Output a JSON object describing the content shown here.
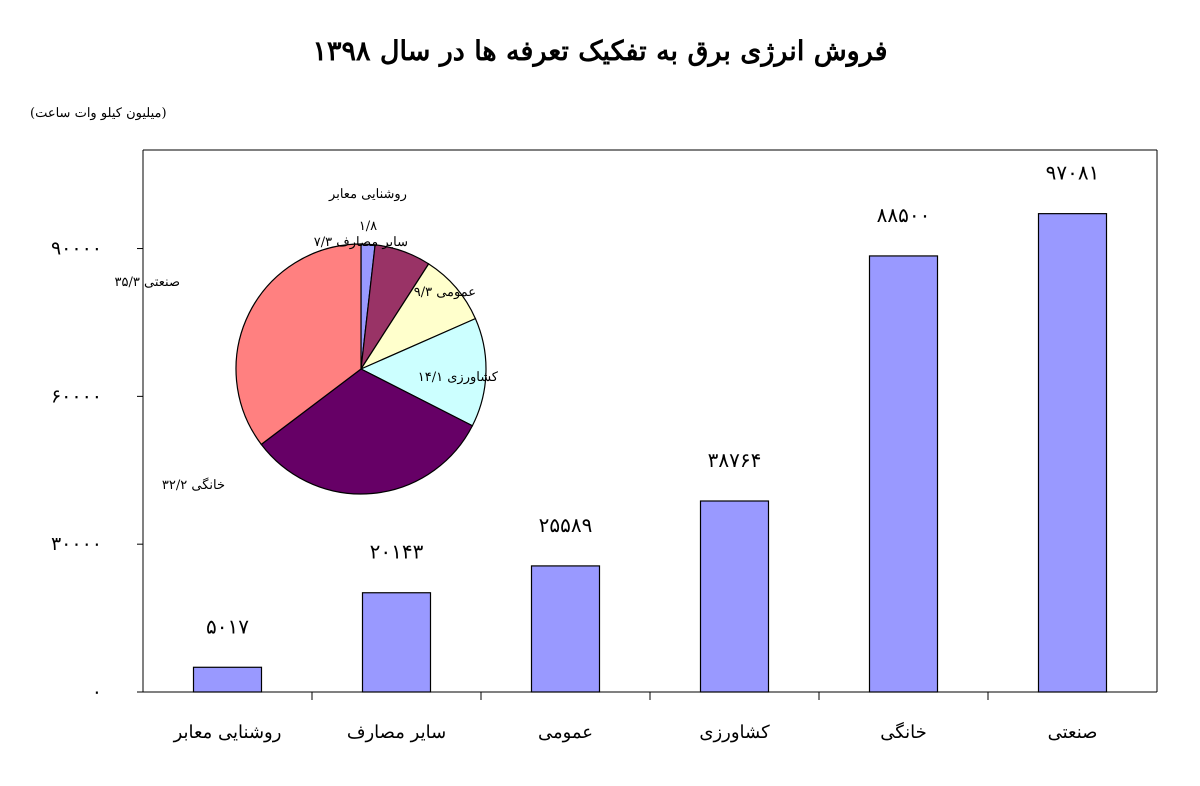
{
  "title": "فروش انرژی برق به تفکیک تعرفه ها در سال ۱۳۹۸",
  "unit_label": "(میلیون کیلو وات ساعت)",
  "colors": {
    "bar_fill": "#9999ff",
    "bar_stroke": "#000000",
    "pie_street_lighting": "#9999ff",
    "pie_other": "#993366",
    "pie_public": "#ffffcc",
    "pie_agriculture": "#ccffff",
    "pie_residential": "#660066",
    "pie_industrial": "#ff8080"
  },
  "chart_data": [
    {
      "type": "bar",
      "categories": [
        "روشنایی معابر",
        "سایر مصارف",
        "عمومی",
        "کشاورزی",
        "خانگی",
        "صنعتی"
      ],
      "values": [
        5017,
        20143,
        25589,
        38764,
        88500,
        97081
      ],
      "data_labels": [
        "۵۰۱۷",
        "۲۰۱۴۳",
        "۲۵۵۸۹",
        "۳۸۷۶۴",
        "۸۸۵۰۰",
        "۹۷۰۸۱"
      ],
      "ylim": [
        0,
        110000
      ],
      "yticks": [
        0,
        30000,
        60000,
        90000
      ],
      "ytick_labels": [
        "۰",
        "۳۰۰۰۰",
        "۶۰۰۰۰",
        "۹۰۰۰۰"
      ],
      "grid": false
    },
    {
      "type": "pie",
      "slices": [
        {
          "name": "روشنایی معابر",
          "value": 1.8,
          "label": "۱/۸"
        },
        {
          "name": "سایر مصارف",
          "value": 7.3,
          "label": "۷/۳"
        },
        {
          "name": "عمومی",
          "value": 9.3,
          "label": "۹/۳"
        },
        {
          "name": "کشاورزی",
          "value": 14.1,
          "label": "۱۴/۱"
        },
        {
          "name": "خانگی",
          "value": 32.2,
          "label": "۳۲/۲"
        },
        {
          "name": "صنعتی",
          "value": 35.3,
          "label": "۳۵/۳"
        }
      ],
      "unit": "percent"
    }
  ]
}
